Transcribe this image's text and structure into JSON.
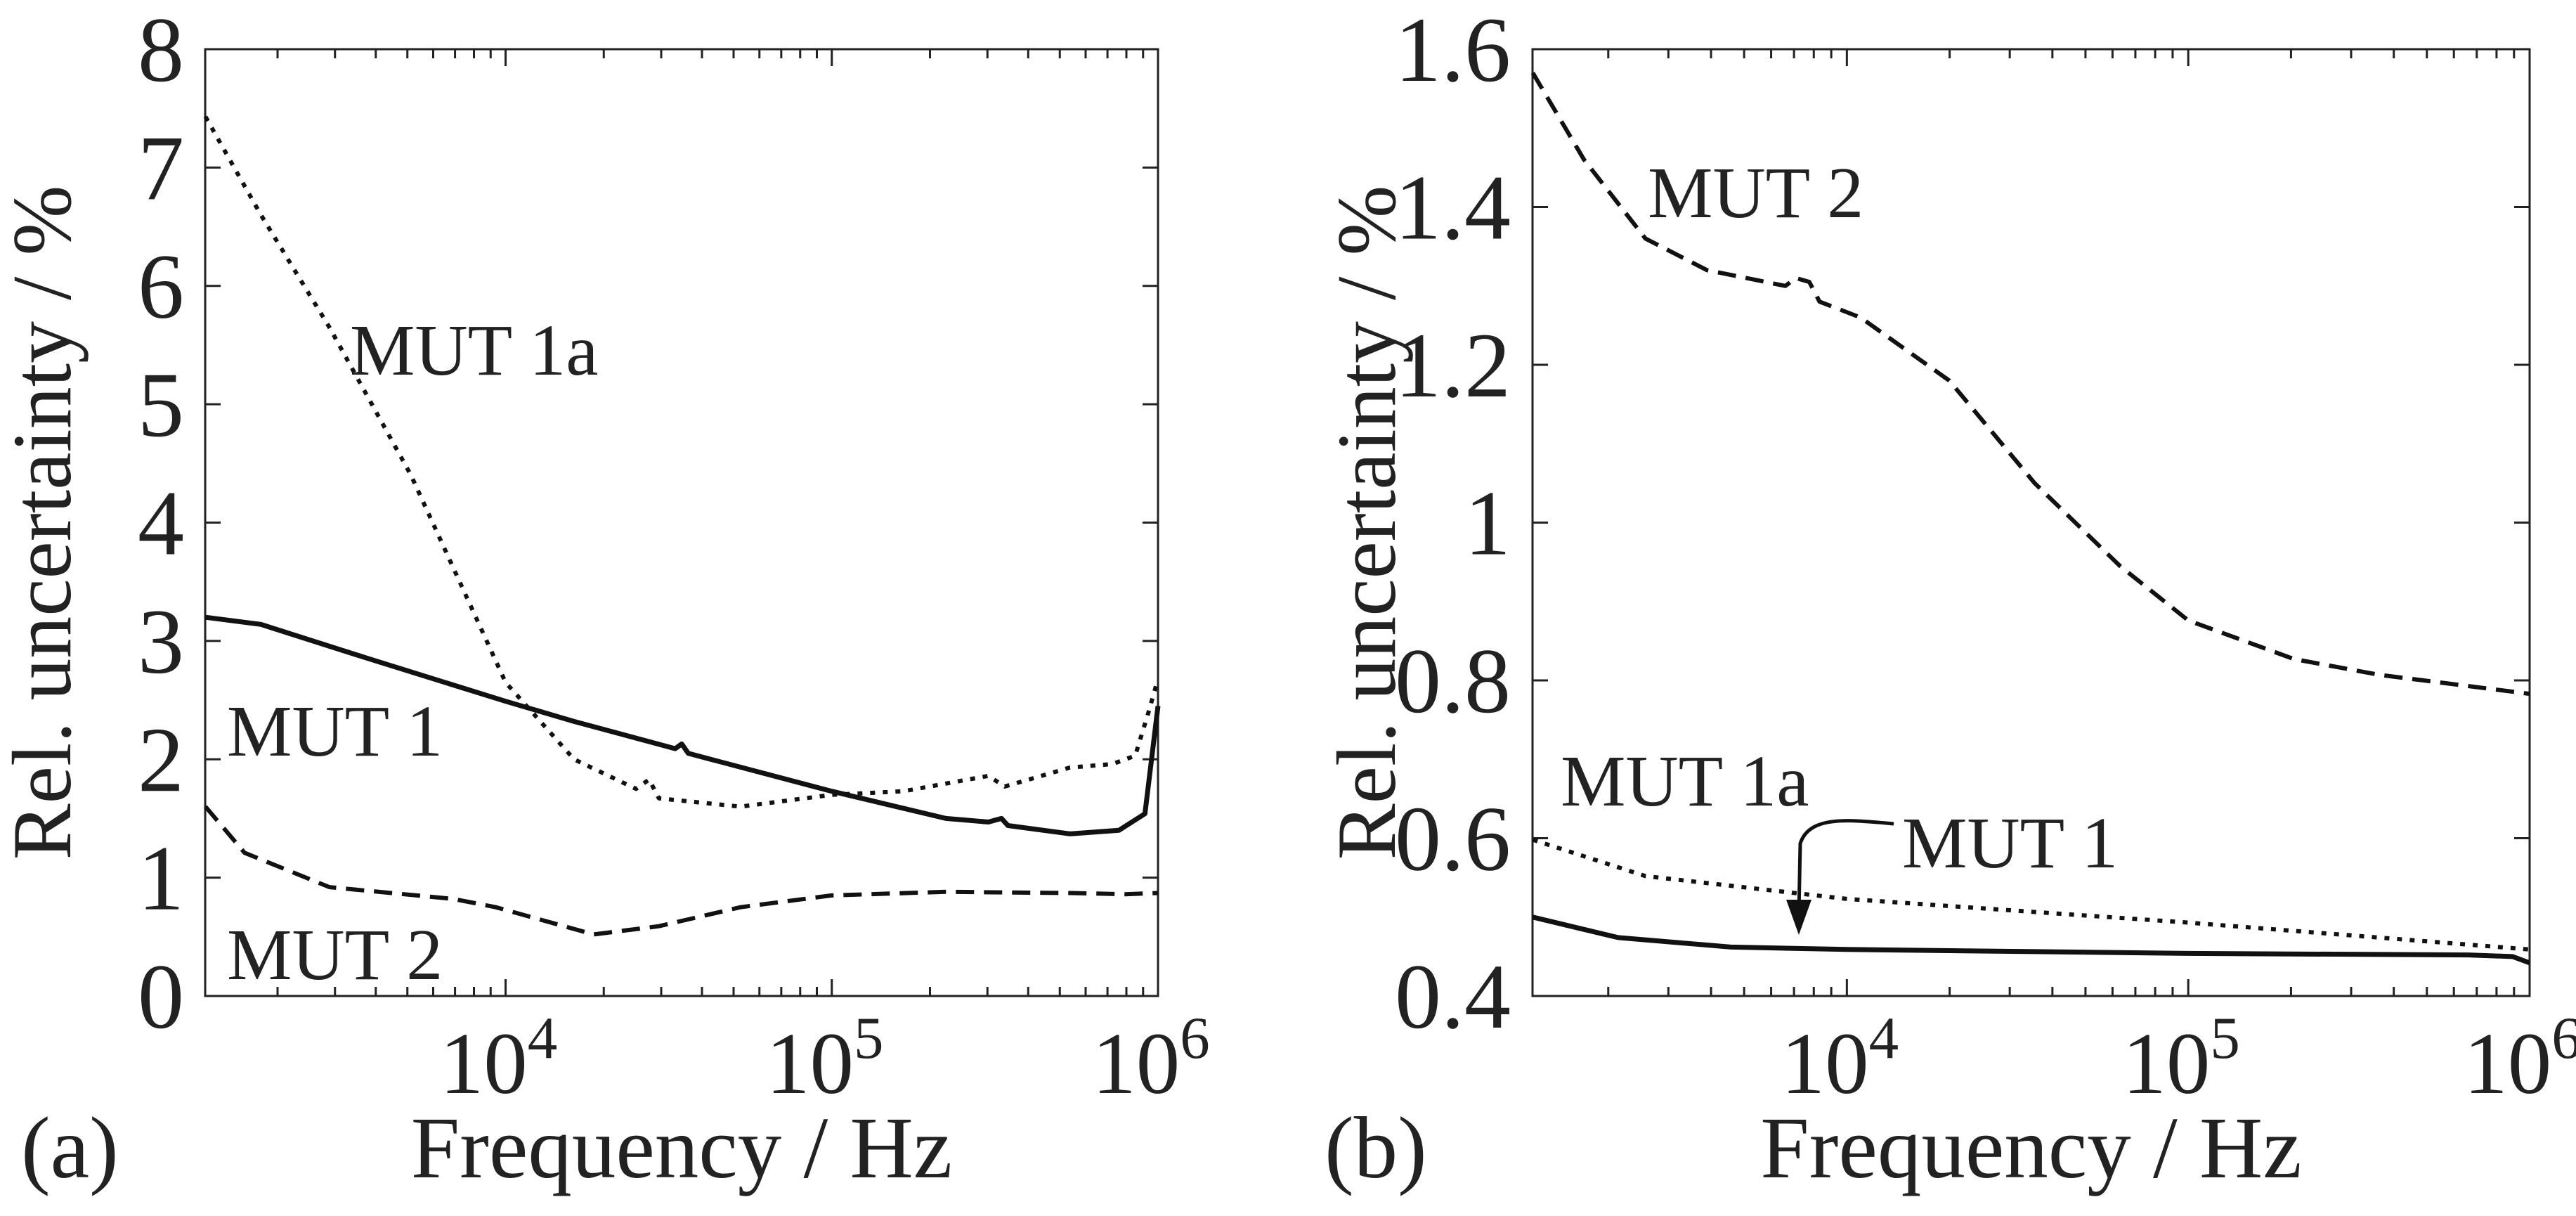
{
  "chart_data": [
    {
      "type": "line",
      "panel_label": "(a)",
      "xlabel": "Frequency / Hz",
      "ylabel": "Rel. uncertainty / %",
      "xscale": "log",
      "xlim": [
        1200,
        1000000
      ],
      "ylim": [
        0,
        8
      ],
      "yticks": [
        0,
        1,
        2,
        3,
        4,
        5,
        6,
        7,
        8
      ],
      "ytick_labels": [
        "0",
        "1",
        "2",
        "3",
        "4",
        "5",
        "6",
        "7",
        "8"
      ],
      "xticks": [
        10000,
        100000,
        1000000
      ],
      "xtick_labels": [
        {
          "base": "10",
          "exp": "4"
        },
        {
          "base": "10",
          "exp": "5"
        },
        {
          "base": "10",
          "exp": "6"
        }
      ],
      "grid": false,
      "series": [
        {
          "name": "MUT 1a",
          "style": "dotted",
          "log10_x": [
            3.08,
            3.25,
            3.46,
            3.71,
            4.0,
            4.21,
            4.4,
            4.44,
            4.47,
            4.72,
            5.0,
            5.22,
            5.48,
            5.53,
            5.73,
            5.86,
            5.93,
            5.97,
            6.0
          ],
          "y": [
            7.43,
            6.6,
            5.65,
            4.4,
            2.65,
            2.0,
            1.75,
            1.83,
            1.67,
            1.6,
            1.7,
            1.73,
            1.86,
            1.77,
            1.93,
            1.96,
            2.03,
            2.39,
            2.68
          ]
        },
        {
          "name": "MUT 1",
          "style": "solid",
          "log10_x": [
            3.08,
            3.25,
            3.58,
            4.0,
            4.21,
            4.52,
            4.54,
            4.56,
            5.0,
            5.35,
            5.48,
            5.52,
            5.54,
            5.73,
            5.88,
            5.96,
            6.0
          ],
          "y": [
            3.2,
            3.14,
            2.85,
            2.49,
            2.32,
            2.09,
            2.13,
            2.05,
            1.73,
            1.5,
            1.47,
            1.5,
            1.44,
            1.37,
            1.4,
            1.54,
            2.45
          ]
        },
        {
          "name": "MUT 2",
          "style": "dashed",
          "log10_x": [
            3.08,
            3.2,
            3.46,
            3.84,
            3.97,
            4.27,
            4.47,
            4.72,
            5.0,
            5.35,
            5.73,
            5.9,
            6.0
          ],
          "y": [
            1.6,
            1.21,
            0.92,
            0.82,
            0.75,
            0.52,
            0.59,
            0.75,
            0.85,
            0.88,
            0.87,
            0.86,
            0.87
          ]
        }
      ],
      "annotations": [
        "MUT 1a",
        "MUT 1",
        "MUT 2"
      ]
    },
    {
      "type": "line",
      "panel_label": "(b)",
      "xlabel": "Frequency / Hz",
      "ylabel": "Rel. uncertainty / %",
      "xscale": "log",
      "xlim": [
        1200,
        1000000
      ],
      "ylim": [
        0.4,
        1.6
      ],
      "yticks": [
        0.4,
        0.6,
        0.8,
        1.0,
        1.2,
        1.4,
        1.6
      ],
      "ytick_labels": [
        "0.4",
        "0.6",
        "0.8",
        "1",
        "1.2",
        "1.4",
        "1.6"
      ],
      "xticks": [
        10000,
        100000,
        1000000
      ],
      "xtick_labels": [
        {
          "base": "10",
          "exp": "4"
        },
        {
          "base": "10",
          "exp": "5"
        },
        {
          "base": "10",
          "exp": "6"
        }
      ],
      "grid": false,
      "series": [
        {
          "name": "MUT 2",
          "style": "dashed",
          "log10_x": [
            3.08,
            3.23,
            3.41,
            3.59,
            3.82,
            3.85,
            3.89,
            3.92,
            4.04,
            4.3,
            4.55,
            4.8,
            5.0,
            5.31,
            5.56,
            6.0
          ],
          "y": [
            1.57,
            1.46,
            1.36,
            1.32,
            1.3,
            1.31,
            1.305,
            1.28,
            1.26,
            1.18,
            1.05,
            0.945,
            0.876,
            0.827,
            0.807,
            0.783
          ]
        },
        {
          "name": "MUT 1a",
          "style": "dotted",
          "log10_x": [
            3.08,
            3.41,
            4.0,
            5.0,
            5.56,
            6.0
          ],
          "y": [
            0.598,
            0.552,
            0.523,
            0.493,
            0.474,
            0.459
          ]
        },
        {
          "name": "MUT 1",
          "style": "solid",
          "log10_x": [
            3.08,
            3.33,
            3.66,
            4.0,
            5.0,
            5.82,
            5.95,
            6.0
          ],
          "y": [
            0.5,
            0.474,
            0.462,
            0.459,
            0.454,
            0.452,
            0.45,
            0.442
          ]
        }
      ],
      "annotations": [
        "MUT 2",
        "MUT 1a",
        "MUT 1"
      ]
    }
  ]
}
